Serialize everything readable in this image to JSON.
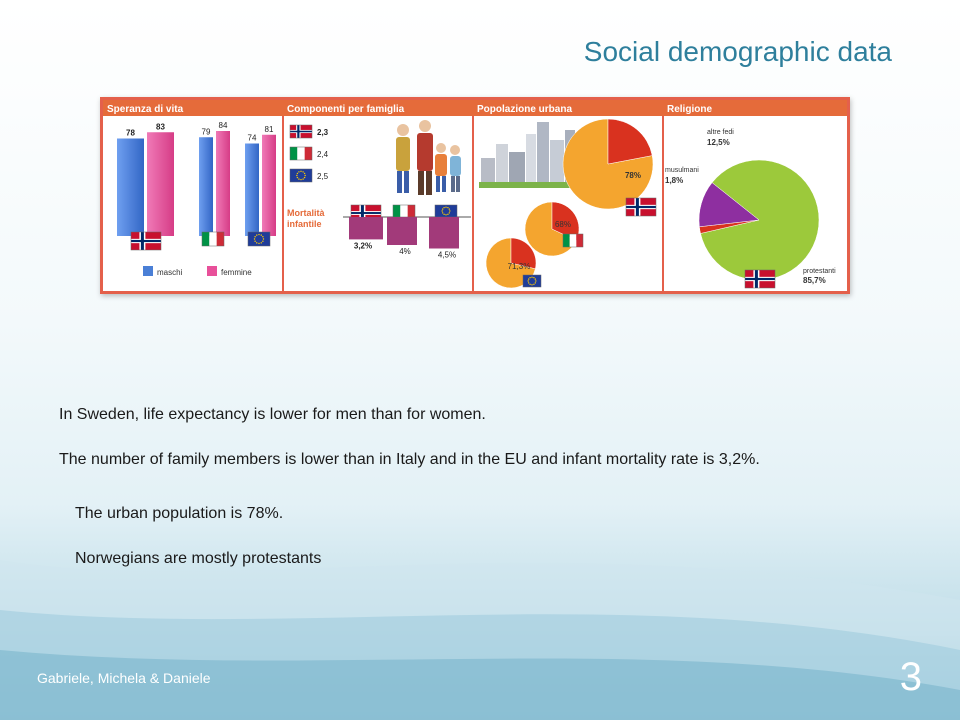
{
  "slide": {
    "title": "Social demographic data",
    "footer": "Gabriele, Michela & Daniele",
    "page_number": "3",
    "paragraphs": [
      "In Sweden, life expectancy is lower for men than for women.",
      "The number of family members is lower than in Italy and in the EU and infant mortality rate is 3,2%.",
      "The urban population is 78%.",
      "Norwegians are mostly protestants"
    ]
  },
  "figure": {
    "life": {
      "title": "Speranza di vita",
      "legend_male": "maschi",
      "legend_female": "femmine",
      "groups": [
        {
          "country": "norway",
          "male": 78,
          "female": 83
        },
        {
          "country": "italy",
          "male": 79,
          "female": 84
        },
        {
          "country": "eu",
          "male": 74,
          "female": 81
        }
      ]
    },
    "family": {
      "title": "Componenti per famiglia",
      "rows": [
        {
          "country": "norway",
          "value": "2,3"
        },
        {
          "country": "italy",
          "value": "2,4"
        },
        {
          "country": "eu",
          "value": "2,5"
        }
      ],
      "mortality_title_1": "Mortalità",
      "mortality_title_2": "infantile",
      "mortality": [
        {
          "country": "norway",
          "label": "3,2%",
          "value": 3.2
        },
        {
          "country": "italy",
          "label": "4%",
          "value": 4
        },
        {
          "country": "eu",
          "label": "4,5%",
          "value": 4.5
        }
      ]
    },
    "urban": {
      "title": "Popolazione urbana",
      "pies": [
        {
          "country": "norway",
          "label": "78%",
          "value": 78
        },
        {
          "country": "italy",
          "label": "68%",
          "value": 68
        },
        {
          "country": "eu",
          "label": "71,3%",
          "value": 71.3
        }
      ]
    },
    "religion": {
      "title": "Religione",
      "slices": [
        {
          "name": "protestanti",
          "label": "85,7%",
          "value": 85.7
        },
        {
          "name": "musulmani",
          "label": "1,8%",
          "value": 1.8
        },
        {
          "name": "altre fedi",
          "label": "12,5%",
          "value": 12.5
        }
      ],
      "country": "norway"
    }
  },
  "colors": {
    "title": "#2e7f9c",
    "male": "#4a7fd6",
    "female": "#e8509a",
    "header": "#e56b3a",
    "frame": "#e4604b",
    "pie_red": "#d9321f",
    "pie_orange": "#f4a52f",
    "rel_green": "#9cc93b",
    "rel_purple": "#8e2fa0",
    "rel_red": "#d9321f",
    "mortality": "#a23a7a"
  }
}
